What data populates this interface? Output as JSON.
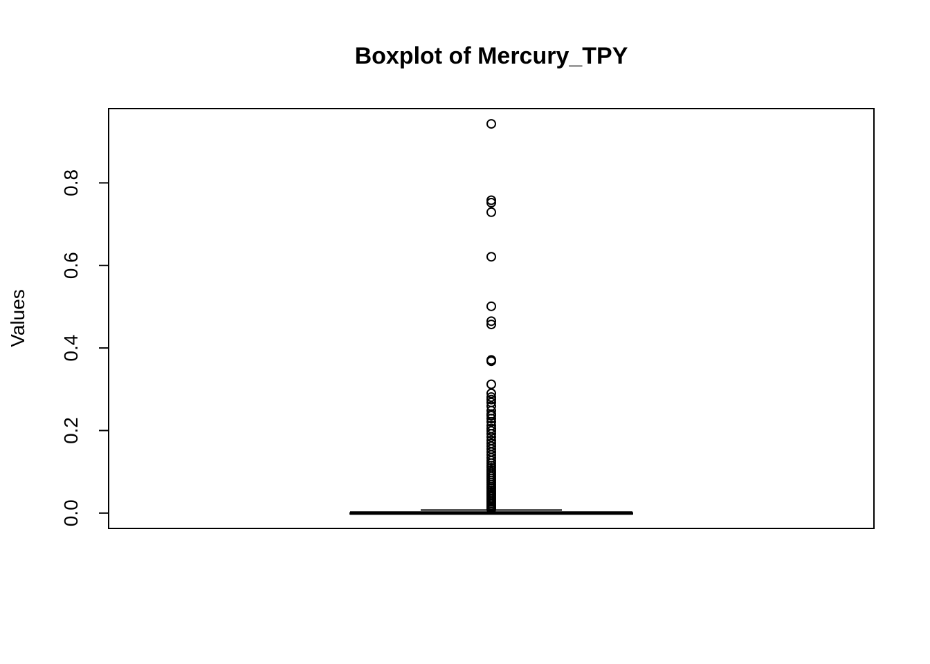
{
  "chart_data": {
    "type": "boxplot",
    "title": "Boxplot of Mercury_TPY",
    "ylabel": "Values",
    "xlabel": "",
    "ylim": [
      -0.0372,
      0.98
    ],
    "yticks": [
      0.0,
      0.2,
      0.4,
      0.6,
      0.8
    ],
    "ytick_labels": [
      "0.0",
      "0.2",
      "0.4",
      "0.6",
      "0.8"
    ],
    "grid": false,
    "box": {
      "min": 0.0,
      "q1": 0.0,
      "median": 0.0,
      "q3": 0.0005,
      "whisker_low": 0.0,
      "whisker_high": 0.0075
    },
    "outliers": [
      0.943,
      0.758,
      0.752,
      0.729,
      0.621,
      0.501,
      0.465,
      0.457,
      0.371,
      0.368,
      0.312,
      0.29,
      0.281,
      0.275,
      0.268,
      0.259,
      0.248,
      0.24,
      0.236,
      0.229,
      0.221,
      0.212,
      0.205,
      0.199,
      0.192,
      0.184,
      0.176,
      0.169,
      0.162,
      0.155,
      0.148,
      0.141,
      0.134,
      0.127,
      0.121,
      0.115,
      0.11,
      0.104,
      0.099,
      0.094,
      0.089,
      0.084,
      0.079,
      0.074,
      0.069,
      0.064,
      0.06,
      0.055,
      0.051,
      0.047,
      0.043,
      0.039,
      0.035,
      0.031,
      0.027,
      0.023,
      0.019,
      0.015,
      0.012,
      0.009
    ]
  }
}
